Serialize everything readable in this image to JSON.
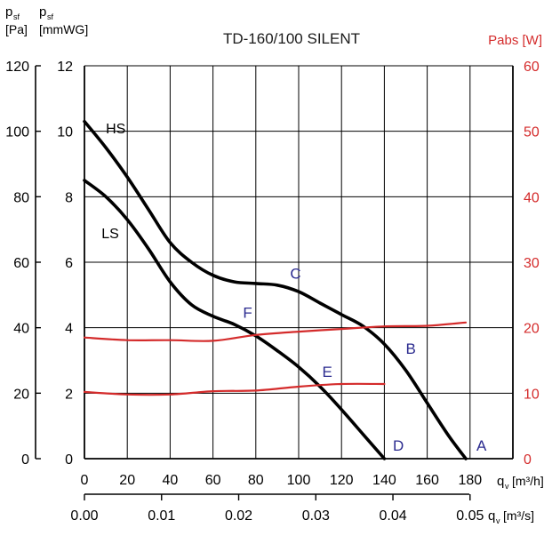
{
  "chart_data": {
    "type": "line",
    "title": "TD-160/100 SILENT",
    "left_axis_pa": {
      "label_main": "p",
      "label_sub": "sf",
      "unit": "[Pa]",
      "range": [
        0,
        120
      ],
      "ticks": [
        0,
        20,
        40,
        60,
        80,
        100,
        120
      ]
    },
    "left_axis_mmwg": {
      "label_main": "p",
      "label_sub": "sf",
      "unit": "[mmWG]",
      "range": [
        0,
        12
      ],
      "ticks": [
        0,
        2,
        4,
        6,
        8,
        10,
        12
      ]
    },
    "right_axis": {
      "label": "Pabs [W]",
      "range": [
        0,
        60
      ],
      "ticks": [
        0,
        10,
        20,
        30,
        40,
        50,
        60
      ]
    },
    "x_axis_m3h": {
      "label_main": "q",
      "label_sub": "v",
      "unit": "[m³/h]",
      "range": [
        0,
        200
      ],
      "ticks": [
        0,
        20,
        40,
        60,
        80,
        100,
        120,
        140,
        160,
        180
      ]
    },
    "x_axis_m3s": {
      "label_main": "q",
      "label_sub": "v",
      "unit": "[m³/s]",
      "ticks": [
        "0.00",
        "0.01",
        "0.02",
        "0.03",
        "0.04",
        "0.05"
      ]
    },
    "grid": true,
    "series": [
      {
        "name": "HS",
        "color": "#000000",
        "axis": "mmwg",
        "x": [
          0,
          10,
          20,
          30,
          40,
          50,
          60,
          70,
          80,
          90,
          100,
          110,
          120,
          130,
          140,
          150,
          160,
          170,
          178
        ],
        "y": [
          10.3,
          9.5,
          8.6,
          7.6,
          6.6,
          6.0,
          5.6,
          5.4,
          5.35,
          5.3,
          5.1,
          4.75,
          4.4,
          4.05,
          3.5,
          2.7,
          1.7,
          0.7,
          0.0
        ]
      },
      {
        "name": "LS",
        "color": "#000000",
        "axis": "mmwg",
        "x": [
          0,
          10,
          20,
          30,
          40,
          50,
          60,
          70,
          80,
          90,
          100,
          110,
          120,
          130,
          140
        ],
        "y": [
          8.5,
          8.0,
          7.3,
          6.4,
          5.4,
          4.7,
          4.35,
          4.1,
          3.75,
          3.3,
          2.8,
          2.2,
          1.5,
          0.75,
          0.0
        ]
      },
      {
        "name": "",
        "color": "#d42b2b",
        "axis": "pabs",
        "x": [
          0,
          20,
          40,
          60,
          80,
          100,
          120,
          140,
          160,
          178
        ],
        "y": [
          18.5,
          18.1,
          18.1,
          18.0,
          18.9,
          19.4,
          19.8,
          20.2,
          20.3,
          20.8
        ]
      },
      {
        "name": "",
        "color": "#d42b2b",
        "axis": "pabs",
        "x": [
          0,
          20,
          40,
          60,
          80,
          100,
          120,
          140
        ],
        "y": [
          10.2,
          9.8,
          9.8,
          10.3,
          10.4,
          11.0,
          11.4,
          11.4
        ]
      }
    ],
    "point_labels": [
      {
        "text": "A",
        "x": 183,
        "y": 0.25
      },
      {
        "text": "B",
        "x": 150,
        "y": 3.2
      },
      {
        "text": "C",
        "x": 96,
        "y": 5.5
      },
      {
        "text": "D",
        "x": 144,
        "y": 0.25
      },
      {
        "text": "E",
        "x": 111,
        "y": 2.5
      },
      {
        "text": "F",
        "x": 74,
        "y": 4.3
      }
    ],
    "curve_labels": [
      {
        "text": "HS",
        "x": 10,
        "y": 10.1
      },
      {
        "text": "LS",
        "x": 8,
        "y": 6.9
      }
    ]
  },
  "colors": {
    "curve": "#000000",
    "power": "#d42b2b",
    "point_label": "#2b2b8f",
    "grid": "#000000"
  }
}
